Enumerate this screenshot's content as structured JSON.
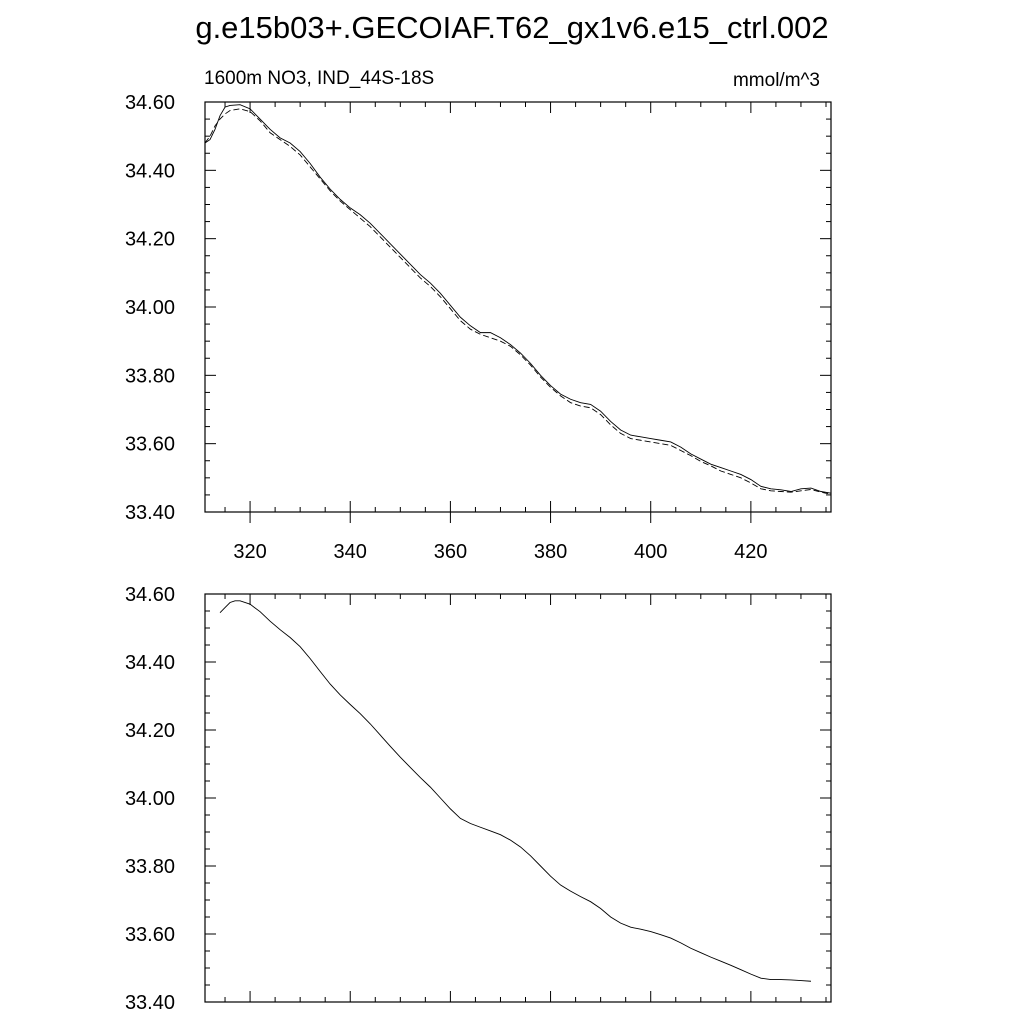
{
  "title": "g.e15b03+.GECOIAF.T62_gx1v6.e15_ctrl.002",
  "chart_data": [
    {
      "type": "line",
      "title": "",
      "left_label": "1600m NO3, IND_44S-18S",
      "right_label": "mmol/m^3",
      "xlim": [
        311,
        436
      ],
      "ylim": [
        33.4,
        34.6
      ],
      "x_ticks": [
        320,
        340,
        360,
        380,
        400,
        420
      ],
      "x_tick_labels": [
        "320",
        "340",
        "360",
        "380",
        "400",
        "420"
      ],
      "y_ticks": [
        33.4,
        33.6,
        33.8,
        34.0,
        34.2,
        34.4,
        34.6
      ],
      "y_tick_labels": [
        "33.40",
        "33.60",
        "33.80",
        "34.00",
        "34.20",
        "34.40",
        "34.60"
      ],
      "grid": false,
      "series": [
        {
          "style": "solid",
          "x": [
            311,
            312,
            313,
            314,
            315,
            316,
            318,
            320,
            322,
            324,
            326,
            328,
            330,
            332,
            334,
            336,
            338,
            340,
            342,
            344,
            346,
            348,
            350,
            352,
            354,
            356,
            358,
            360,
            362,
            364,
            366,
            368,
            370,
            372,
            374,
            376,
            378,
            380,
            382,
            384,
            386,
            388,
            390,
            392,
            394,
            396,
            398,
            400,
            402,
            404,
            406,
            408,
            410,
            412,
            414,
            416,
            418,
            420,
            422,
            424,
            426,
            428,
            430,
            432,
            434,
            436
          ],
          "y": [
            34.48,
            34.49,
            34.52,
            34.56,
            34.585,
            34.59,
            34.592,
            34.58,
            34.55,
            34.52,
            34.495,
            34.48,
            34.455,
            34.42,
            34.38,
            34.345,
            34.315,
            34.29,
            34.27,
            34.245,
            34.215,
            34.185,
            34.155,
            34.125,
            34.095,
            34.07,
            34.04,
            34.005,
            33.97,
            33.945,
            33.925,
            33.925,
            33.91,
            33.89,
            33.865,
            33.835,
            33.8,
            33.77,
            33.745,
            33.73,
            33.72,
            33.715,
            33.695,
            33.665,
            33.64,
            33.625,
            33.62,
            33.615,
            33.61,
            33.605,
            33.59,
            33.57,
            33.555,
            33.54,
            33.53,
            33.52,
            33.51,
            33.495,
            33.475,
            33.468,
            33.465,
            33.46,
            33.468,
            33.47,
            33.46,
            33.455
          ]
        },
        {
          "style": "dashed",
          "x": [
            311,
            312,
            313,
            314,
            315,
            316,
            318,
            320,
            322,
            324,
            326,
            328,
            330,
            332,
            334,
            336,
            338,
            340,
            342,
            344,
            346,
            348,
            350,
            352,
            354,
            356,
            358,
            360,
            362,
            364,
            366,
            368,
            370,
            372,
            374,
            376,
            378,
            380,
            382,
            384,
            386,
            388,
            390,
            392,
            394,
            396,
            398,
            400,
            402,
            404,
            406,
            408,
            410,
            412,
            414,
            416,
            418,
            420,
            422,
            424,
            426,
            428,
            430,
            432,
            434,
            436
          ],
          "y": [
            34.48,
            34.5,
            34.53,
            34.55,
            34.565,
            34.575,
            34.58,
            34.572,
            34.545,
            34.51,
            34.49,
            34.47,
            34.445,
            34.41,
            34.375,
            34.34,
            34.31,
            34.285,
            34.26,
            34.235,
            34.205,
            34.175,
            34.145,
            34.115,
            34.085,
            34.06,
            34.03,
            33.995,
            33.96,
            33.935,
            33.92,
            33.91,
            33.9,
            33.885,
            33.86,
            33.83,
            33.795,
            33.765,
            33.74,
            33.72,
            33.71,
            33.705,
            33.685,
            33.655,
            33.63,
            33.615,
            33.61,
            33.605,
            33.6,
            33.595,
            33.58,
            33.565,
            33.548,
            33.535,
            33.52,
            33.51,
            33.5,
            33.485,
            33.468,
            33.462,
            33.46,
            33.458,
            33.462,
            33.466,
            33.458,
            33.452
          ]
        }
      ]
    },
    {
      "type": "line",
      "title": "",
      "xlim": [
        311,
        436
      ],
      "ylim": [
        33.4,
        34.6
      ],
      "x_ticks": [
        320,
        340,
        360,
        380,
        400,
        420
      ],
      "y_ticks": [
        33.4,
        33.6,
        33.8,
        34.0,
        34.2,
        34.4,
        34.6
      ],
      "y_tick_labels": [
        "33.40",
        "33.60",
        "33.80",
        "34.00",
        "34.20",
        "34.40",
        "34.60"
      ],
      "grid": false,
      "series": [
        {
          "style": "solid",
          "x": [
            314,
            315,
            316,
            317,
            318,
            320,
            322,
            324,
            326,
            328,
            330,
            332,
            334,
            336,
            338,
            340,
            342,
            344,
            346,
            348,
            350,
            352,
            354,
            356,
            358,
            360,
            362,
            364,
            366,
            368,
            370,
            372,
            374,
            376,
            378,
            380,
            382,
            384,
            386,
            388,
            390,
            392,
            394,
            396,
            398,
            400,
            402,
            404,
            406,
            408,
            410,
            412,
            414,
            416,
            418,
            420,
            422,
            424,
            426,
            428,
            430,
            432
          ],
          "y": [
            34.545,
            34.56,
            34.575,
            34.58,
            34.58,
            34.57,
            34.548,
            34.52,
            34.495,
            34.472,
            34.445,
            34.41,
            34.372,
            34.335,
            34.303,
            34.275,
            34.248,
            34.218,
            34.185,
            34.152,
            34.12,
            34.09,
            34.06,
            34.032,
            34.0,
            33.968,
            33.94,
            33.925,
            33.914,
            33.903,
            33.892,
            33.876,
            33.856,
            33.83,
            33.8,
            33.77,
            33.744,
            33.726,
            33.71,
            33.695,
            33.675,
            33.65,
            33.632,
            33.62,
            33.614,
            33.607,
            33.598,
            33.588,
            33.574,
            33.558,
            33.545,
            33.532,
            33.52,
            33.508,
            33.495,
            33.482,
            33.47,
            33.466,
            33.466,
            33.465,
            33.463,
            33.461
          ]
        }
      ]
    }
  ]
}
